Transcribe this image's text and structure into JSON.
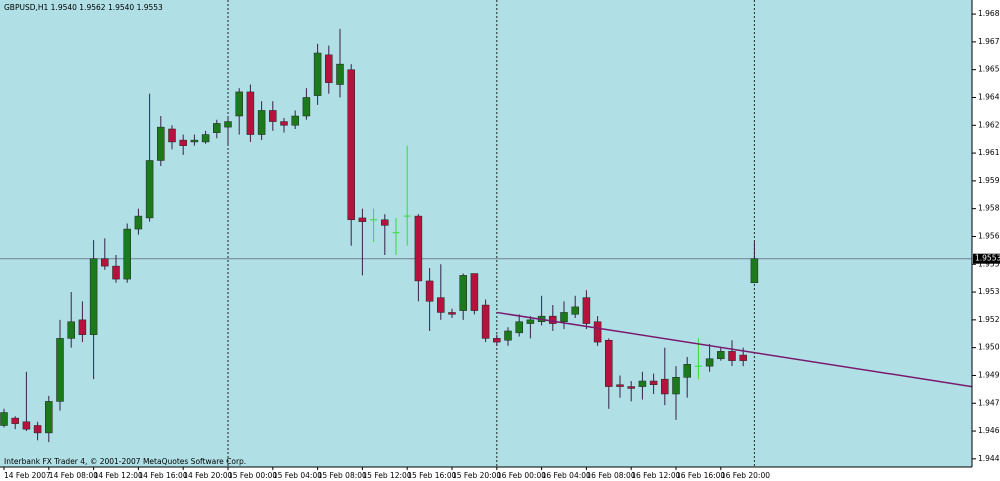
{
  "chart_data": {
    "type": "candlestick",
    "title": "GBPUSD,H1  1.9540 1.9562 1.9540 1.9553",
    "footer": "Interbank FX Trader 4, © 2001-2007 MetaQuotes Software Corp.",
    "categories": [
      "14 Feb 2007",
      null,
      null,
      null,
      "14 Feb 08:00",
      null,
      null,
      null,
      "14 Feb 12:00",
      null,
      null,
      null,
      "14 Feb 16:00",
      null,
      null,
      null,
      "14 Feb 20:00",
      null,
      null,
      null,
      "15 Feb 00:00",
      null,
      null,
      null,
      "15 Feb 04:00",
      null,
      null,
      null,
      "15 Feb 08:00",
      null,
      null,
      null,
      "15 Feb 12:00",
      null,
      null,
      null,
      "15 Feb 16:00",
      null,
      null,
      null,
      "15 Feb 20:00",
      null,
      null,
      null,
      "16 Feb 00:00",
      null,
      null,
      null,
      "16 Feb 04:00",
      null,
      null,
      null,
      "16 Feb 08:00",
      null,
      null,
      null,
      "16 Feb 12:00",
      null,
      null,
      null,
      "16 Feb 16:00",
      null,
      null,
      null,
      "16 Feb 20:00",
      null,
      null,
      null
    ],
    "open": [
      1.9463,
      1.9467,
      1.9465,
      1.9463,
      1.9459,
      1.9476,
      1.951,
      1.952,
      1.9512,
      1.9553,
      1.9549,
      1.9542,
      1.9569,
      1.9575,
      1.9606,
      1.9623,
      1.9617,
      1.9616,
      1.9616,
      1.9621,
      1.9624,
      1.963,
      1.9643,
      1.962,
      1.9633,
      1.9627,
      1.9625,
      1.963,
      1.9641,
      1.9663,
      1.9647,
      1.9655,
      1.9575,
      1.9574,
      1.9574,
      1.9567,
      1.9576,
      1.9576,
      1.9541,
      1.9532,
      1.9524,
      1.9525,
      1.9545,
      1.9528,
      1.951,
      1.9509,
      1.9513,
      1.9518,
      1.9519,
      1.9522,
      1.9519,
      1.9523,
      1.9532,
      1.9519,
      1.9509,
      1.9485,
      1.9484,
      1.9484,
      1.9487,
      1.9488,
      1.948,
      1.9489,
      1.9495,
      1.9495,
      1.9499,
      1.9503,
      1.9501,
      1.954
    ],
    "high": [
      1.9472,
      1.9468,
      1.9492,
      1.9465,
      1.9479,
      1.952,
      1.9535,
      1.953,
      1.9563,
      1.9564,
      1.9555,
      1.9572,
      1.958,
      1.9642,
      1.963,
      1.9625,
      1.962,
      1.962,
      1.9622,
      1.9628,
      1.9629,
      1.9645,
      1.9647,
      1.9638,
      1.9638,
      1.9629,
      1.9633,
      1.9645,
      1.9669,
      1.9668,
      1.9677,
      1.9658,
      1.958,
      1.958,
      1.9577,
      1.9575,
      1.9614,
      1.9577,
      1.9548,
      1.955,
      1.9526,
      1.9545,
      1.9545,
      1.9531,
      1.9512,
      1.9516,
      1.9523,
      1.9522,
      1.9533,
      1.9528,
      1.953,
      1.9533,
      1.9536,
      1.9522,
      1.951,
      1.949,
      1.9487,
      1.9492,
      1.9491,
      1.9505,
      1.9495,
      1.95,
      1.951,
      1.9507,
      1.9505,
      1.9509,
      1.9505,
      1.9562
    ],
    "low": [
      1.9462,
      1.9461,
      1.946,
      1.9455,
      1.9454,
      1.9471,
      1.9505,
      1.9508,
      1.9488,
      1.9547,
      1.954,
      1.954,
      1.9566,
      1.9573,
      1.9603,
      1.9612,
      1.9609,
      1.9614,
      1.9615,
      1.9618,
      1.9614,
      1.962,
      1.9616,
      1.9617,
      1.9622,
      1.9621,
      1.9623,
      1.9628,
      1.9636,
      1.9642,
      1.964,
      1.956,
      1.9544,
      1.9562,
      1.9555,
      1.9555,
      1.956,
      1.953,
      1.9514,
      1.952,
      1.9521,
      1.952,
      1.9523,
      1.9508,
      1.9506,
      1.9506,
      1.9511,
      1.951,
      1.9517,
      1.9514,
      1.9515,
      1.9521,
      1.9515,
      1.9506,
      1.9472,
      1.9478,
      1.9476,
      1.9477,
      1.948,
      1.9474,
      1.9466,
      1.9478,
      1.9488,
      1.9492,
      1.9498,
      1.9495,
      1.9495,
      1.954
    ],
    "close": [
      1.947,
      1.9464,
      1.9461,
      1.9459,
      1.9476,
      1.951,
      1.9519,
      1.9512,
      1.9553,
      1.9549,
      1.9542,
      1.9569,
      1.9576,
      1.9606,
      1.9624,
      1.9616,
      1.9614,
      1.9617,
      1.962,
      1.9626,
      1.9627,
      1.9643,
      1.962,
      1.9633,
      1.9627,
      1.9625,
      1.963,
      1.964,
      1.9664,
      1.9648,
      1.9658,
      1.9574,
      1.9573,
      1.9574,
      1.9571,
      1.9567,
      1.9576,
      1.9541,
      1.953,
      1.9524,
      1.9523,
      1.9544,
      1.9525,
      1.951,
      1.9508,
      1.9514,
      1.9519,
      1.952,
      1.9522,
      1.9518,
      1.9524,
      1.9527,
      1.9518,
      1.9508,
      1.9484,
      1.9484,
      1.9483,
      1.9487,
      1.9485,
      1.948,
      1.9489,
      1.9496,
      1.9495,
      1.9499,
      1.9503,
      1.9498,
      1.9498,
      1.9553
    ],
    "colors": {
      "up": "#1c7a1c",
      "down": "#b5123d",
      "doji": "#33dd33",
      "wick": "#3a1f4a",
      "trendline": "#7a1a6e",
      "background": "#b0e0e6"
    },
    "last_price": 1.9553,
    "separators": [
      20,
      44,
      67
    ],
    "trendline": {
      "bar": [
        44,
        86.4
      ],
      "price": [
        1.9524,
        1.9484
      ]
    },
    "ylim": [
      1.94406,
      1.96926
    ],
    "yticks": [
      1.9445,
      1.946,
      1.9475,
      1.949,
      1.9505,
      1.952,
      1.9535,
      1.955,
      1.9565,
      1.958,
      1.9595,
      1.961,
      1.9625,
      1.964,
      1.9655,
      1.967,
      1.9685
    ]
  }
}
